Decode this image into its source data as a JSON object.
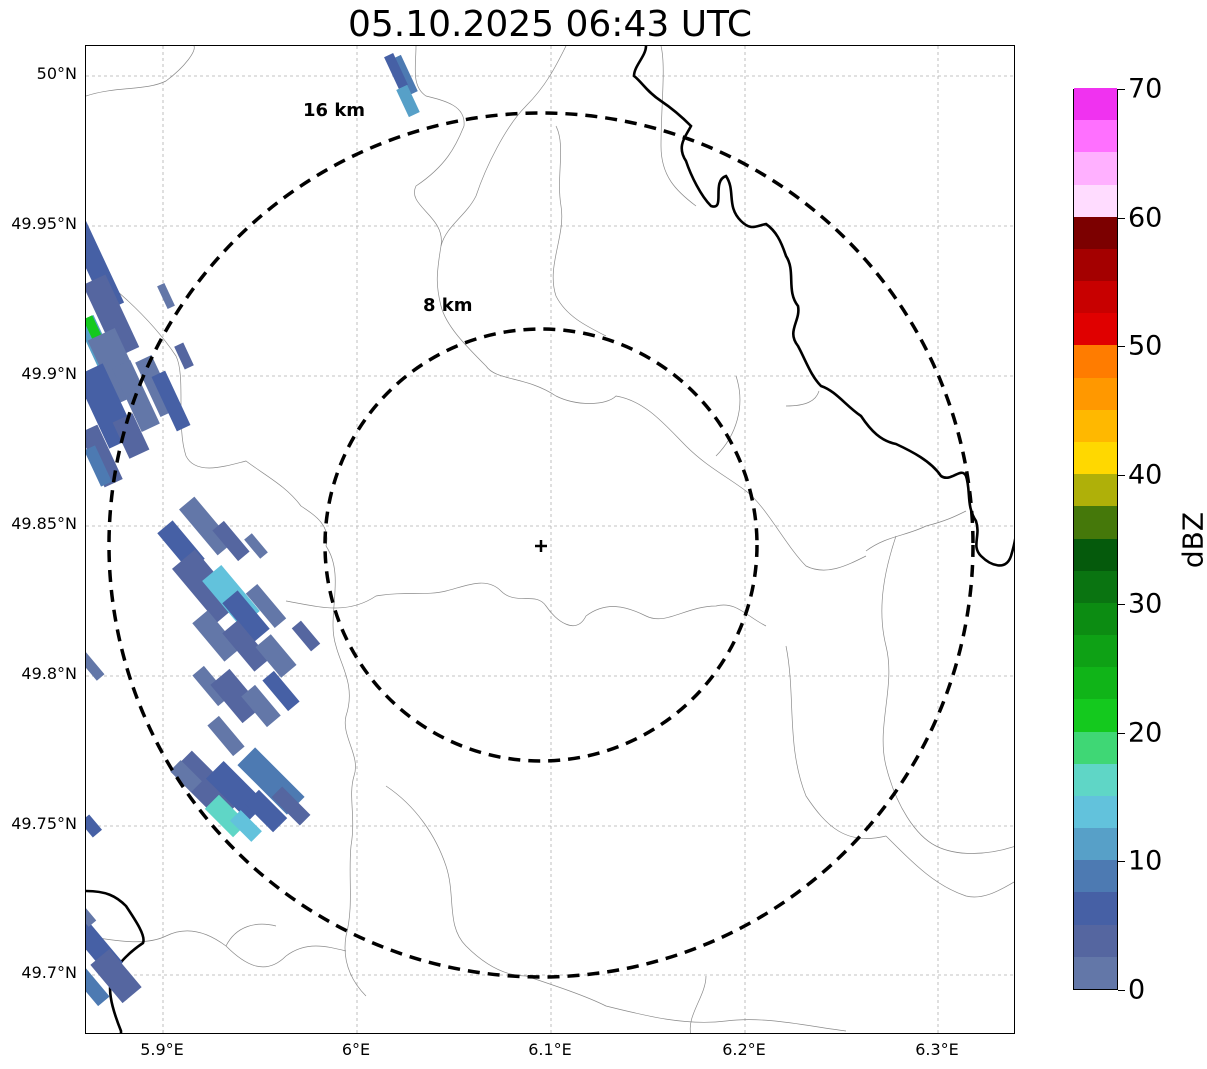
{
  "title": "05.10.2025 06:43 UTC",
  "map": {
    "lat_ticks": [
      {
        "value": 50.0,
        "label": "50°N"
      },
      {
        "value": 49.95,
        "label": "49.95°N"
      },
      {
        "value": 49.9,
        "label": "49.9°N"
      },
      {
        "value": 49.85,
        "label": "49.85°N"
      },
      {
        "value": 49.8,
        "label": "49.8°N"
      },
      {
        "value": 49.75,
        "label": "49.75°N"
      },
      {
        "value": 49.7,
        "label": "49.7°N"
      }
    ],
    "lon_ticks": [
      {
        "value": 5.9,
        "label": "5.9°E"
      },
      {
        "value": 6.0,
        "label": "6°E"
      },
      {
        "value": 6.1,
        "label": "6.1°E"
      },
      {
        "value": 6.2,
        "label": "6.2°E"
      },
      {
        "value": 6.3,
        "label": "6.3°E"
      }
    ],
    "radar_center": {
      "lon": 6.095,
      "lat": 49.843
    },
    "range_rings": [
      {
        "label": "8 km",
        "radius_km": 8
      },
      {
        "label": "16 km",
        "radius_km": 16
      }
    ],
    "gridlines": true
  },
  "colorbar": {
    "unit": "dBZ",
    "min": 0,
    "max": 70,
    "ticks": [
      {
        "value": 0,
        "label": "0"
      },
      {
        "value": 10,
        "label": "10"
      },
      {
        "value": 20,
        "label": "20"
      },
      {
        "value": 30,
        "label": "30"
      },
      {
        "value": 40,
        "label": "40"
      },
      {
        "value": 50,
        "label": "50"
      },
      {
        "value": 60,
        "label": "60"
      },
      {
        "value": 70,
        "label": "70"
      }
    ],
    "colors": [
      "#6377a8",
      "#5566a0",
      "#4660a5",
      "#4d7ab2",
      "#57a0c8",
      "#62c2dc",
      "#5fd6c6",
      "#3fd775",
      "#14c91e",
      "#10b418",
      "#0ea115",
      "#0c8c12",
      "#0a7411",
      "#055a0c",
      "#45780a",
      "#afb009",
      "#ffd800",
      "#ffb800",
      "#ff9800",
      "#ff7c00",
      "#e00000",
      "#c80000",
      "#a40000",
      "#7c0000",
      "#ffdcff",
      "#ffb0ff",
      "#ff70ff",
      "#f032f0"
    ]
  }
}
